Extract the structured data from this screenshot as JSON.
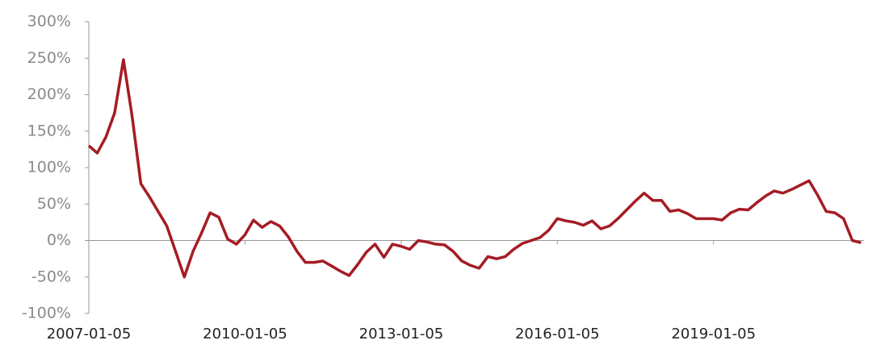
{
  "chart_data": {
    "type": "line",
    "x": [
      "2007-01-05",
      "2007-03-05",
      "2007-05-05",
      "2007-07-05",
      "2007-09-05",
      "2007-11-05",
      "2008-01-05",
      "2008-03-05",
      "2008-05-05",
      "2008-07-05",
      "2008-09-05",
      "2008-11-05",
      "2009-01-05",
      "2009-03-05",
      "2009-05-05",
      "2009-07-05",
      "2009-09-05",
      "2009-11-05",
      "2010-01-05",
      "2010-03-05",
      "2010-05-05",
      "2010-07-05",
      "2010-09-05",
      "2010-11-05",
      "2011-01-05",
      "2011-03-05",
      "2011-05-05",
      "2011-07-05",
      "2011-09-05",
      "2011-11-05",
      "2012-01-05",
      "2012-03-05",
      "2012-05-05",
      "2012-07-05",
      "2012-09-05",
      "2012-11-05",
      "2013-01-05",
      "2013-03-05",
      "2013-05-05",
      "2013-07-05",
      "2013-09-05",
      "2013-11-05",
      "2014-01-05",
      "2014-03-05",
      "2014-05-05",
      "2014-07-05",
      "2014-09-05",
      "2014-11-05",
      "2015-01-05",
      "2015-03-05",
      "2015-05-05",
      "2015-07-05",
      "2015-09-05",
      "2015-11-05",
      "2016-01-05",
      "2016-03-05",
      "2016-05-05",
      "2016-07-05",
      "2016-09-05",
      "2016-11-05",
      "2017-01-05",
      "2017-03-05",
      "2017-05-05",
      "2017-07-05",
      "2017-09-05",
      "2017-11-05",
      "2018-01-05",
      "2018-03-05",
      "2018-05-05",
      "2018-07-05",
      "2018-09-05",
      "2018-11-05",
      "2019-01-05",
      "2019-03-05",
      "2019-05-05",
      "2019-07-05",
      "2019-09-05",
      "2019-11-05",
      "2020-01-05",
      "2020-03-05",
      "2020-05-05",
      "2020-07-05",
      "2020-09-05",
      "2020-11-05",
      "2021-01-05",
      "2021-03-05",
      "2021-05-05",
      "2021-07-05",
      "2021-09-05",
      "2021-11-05"
    ],
    "series": [
      {
        "color": "#a51c24",
        "values": [
          130,
          120,
          142,
          175,
          248,
          170,
          78,
          60,
          40,
          20,
          -15,
          -50,
          -15,
          10,
          38,
          32,
          2,
          -5,
          8,
          28,
          18,
          26,
          20,
          5,
          -15,
          -30,
          -30,
          -28,
          -35,
          -42,
          -48,
          -33,
          -16,
          -5,
          -23,
          -5,
          -8,
          -12,
          0,
          -2,
          -5,
          -6,
          -15,
          -28,
          -34,
          -38,
          -22,
          -25,
          -22,
          -12,
          -4,
          0,
          4,
          14,
          30,
          27,
          25,
          21,
          27,
          16,
          20,
          30,
          42,
          54,
          65,
          55,
          55,
          40,
          42,
          37,
          30,
          30,
          30,
          28,
          38,
          43,
          42,
          52,
          61,
          68,
          65,
          70,
          76,
          82,
          62,
          40,
          38,
          30,
          0,
          -3
        ]
      }
    ],
    "xlim": [
      "2007-01-05",
      "2021-11-25"
    ],
    "xticks": [
      "2007-01-05",
      "2010-01-05",
      "2013-01-05",
      "2016-01-05",
      "2019-01-05"
    ],
    "ylim": [
      -100,
      300
    ],
    "yticks": [
      {
        "value": -100,
        "label": "-100%"
      },
      {
        "value": -50,
        "label": "-50%"
      },
      {
        "value": 0,
        "label": "0%"
      },
      {
        "value": 50,
        "label": "50%"
      },
      {
        "value": 100,
        "label": "100%"
      },
      {
        "value": 150,
        "label": "150%"
      },
      {
        "value": 200,
        "label": "200%"
      },
      {
        "value": 250,
        "label": "250%"
      },
      {
        "value": 300,
        "label": "300%"
      }
    ]
  }
}
